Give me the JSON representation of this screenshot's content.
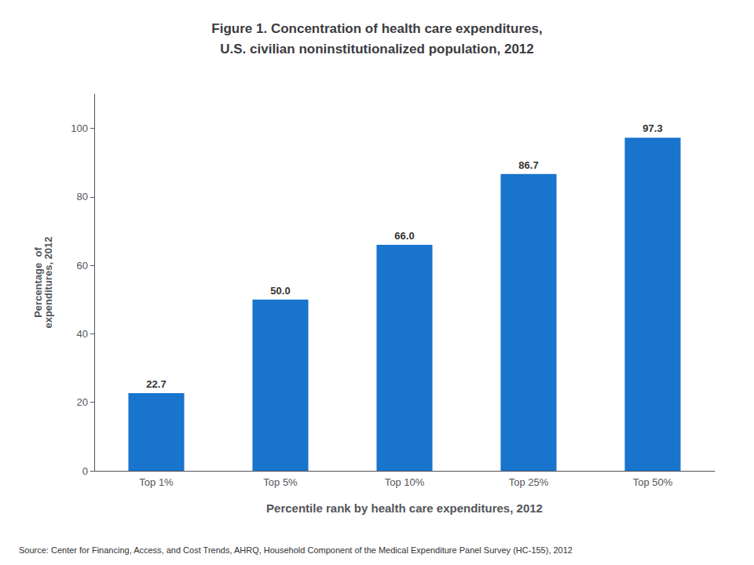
{
  "chart_data": {
    "type": "bar",
    "title": "Figure 1. Concentration of health care expenditures,\nU.S. civilian noninstitutionalized population, 2012",
    "x_label": "Percentile rank by health care expenditures, 2012",
    "y_label": "Percentage  of\nexpenditures, 2012",
    "annotations": [
      "Source: Center for Financing, Access, and Cost Trends, AHRQ, Household Component of the Medical Expenditure Panel Survey (HC-155), 2012"
    ],
    "categories": [
      "Top 1%",
      "Top 5%",
      "Top 10%",
      "Top 25%",
      "Top 50%"
    ],
    "values": [
      22.7,
      50.0,
      66.0,
      86.7,
      97.3
    ],
    "value_labels": [
      "22.7",
      "50.0",
      "66.0",
      "86.7",
      "97.3"
    ],
    "data_labels": true,
    "color": "#1874CD",
    "ylim": [
      0,
      110
    ],
    "yticks": [
      0,
      20,
      40,
      60,
      80,
      100
    ],
    "grid": false
  }
}
